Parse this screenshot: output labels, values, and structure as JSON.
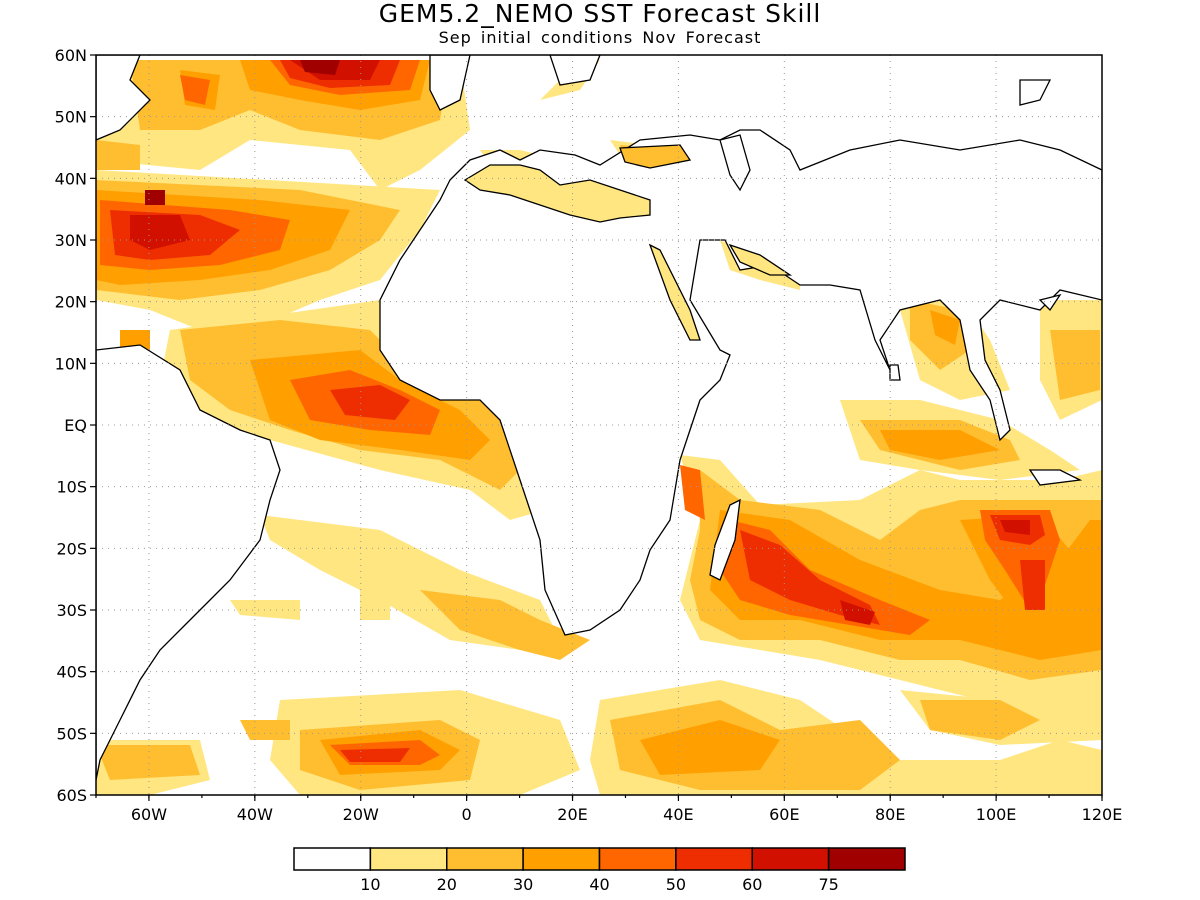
{
  "title": "GEM5.2_NEMO SST Forecast Skill",
  "subtitle": "Sep initial conditions  Nov Forecast",
  "map": {
    "lat_labels": [
      "60N",
      "50N",
      "40N",
      "30N",
      "20N",
      "10N",
      "EQ",
      "10S",
      "20S",
      "30S",
      "40S",
      "50S",
      "60S"
    ],
    "lon_labels": [
      "60W",
      "40W",
      "20W",
      "0",
      "20E",
      "40E",
      "60E",
      "80E",
      "100E",
      "120E"
    ],
    "lon_range": [
      -70,
      120
    ],
    "lat_range": [
      -60,
      60
    ],
    "grid": "dotted"
  },
  "colorbar": {
    "colors": [
      "#ffffff",
      "#ffe680",
      "#ffbe30",
      "#ffa000",
      "#ff6600",
      "#ee2e00",
      "#d21000",
      "#a00000"
    ],
    "labels": [
      "10",
      "20",
      "30",
      "40",
      "50",
      "60",
      "75"
    ]
  }
}
